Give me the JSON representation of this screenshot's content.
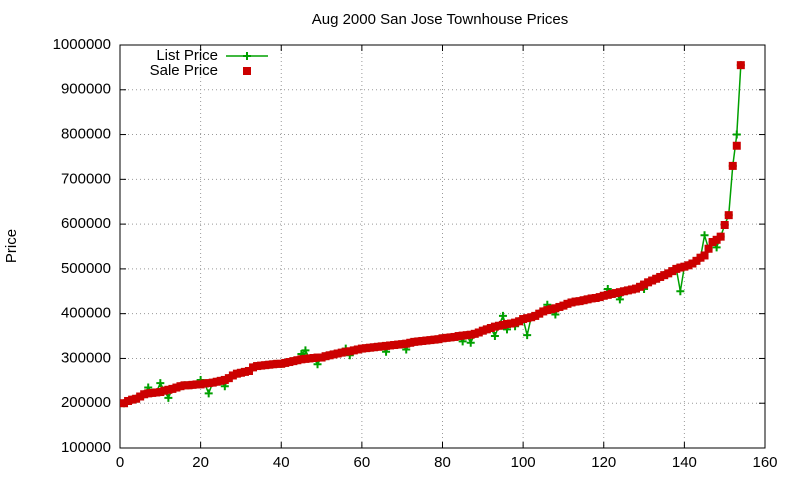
{
  "chart_data": {
    "type": "line",
    "title": "Aug 2000 San Jose Townhouse Prices",
    "y_label": "Price",
    "x": [
      1,
      2,
      3,
      4,
      5,
      6,
      7,
      8,
      9,
      10,
      11,
      12,
      13,
      14,
      15,
      16,
      17,
      18,
      19,
      20,
      21,
      22,
      23,
      24,
      25,
      26,
      27,
      28,
      29,
      30,
      31,
      32,
      33,
      34,
      35,
      36,
      37,
      38,
      39,
      40,
      41,
      42,
      43,
      44,
      45,
      46,
      47,
      48,
      49,
      50,
      51,
      52,
      53,
      54,
      55,
      56,
      57,
      58,
      59,
      60,
      61,
      62,
      63,
      64,
      65,
      66,
      67,
      68,
      69,
      70,
      71,
      72,
      73,
      74,
      75,
      76,
      77,
      78,
      79,
      80,
      81,
      82,
      83,
      84,
      85,
      86,
      87,
      88,
      89,
      90,
      91,
      92,
      93,
      94,
      95,
      96,
      97,
      98,
      99,
      100,
      101,
      102,
      103,
      104,
      105,
      106,
      107,
      108,
      109,
      110,
      111,
      112,
      113,
      114,
      115,
      116,
      117,
      118,
      119,
      120,
      121,
      122,
      123,
      124,
      125,
      126,
      127,
      128,
      129,
      130,
      131,
      132,
      133,
      134,
      135,
      136,
      137,
      138,
      139,
      140,
      141,
      142,
      143,
      144,
      145,
      146,
      147,
      148,
      149,
      150,
      151,
      152,
      153,
      154
    ],
    "series": [
      {
        "name": "List Price",
        "color": "#00a000",
        "marker": "plus",
        "values": [
          200000,
          205000,
          208000,
          210000,
          215000,
          220000,
          235000,
          223000,
          224000,
          245000,
          228000,
          212000,
          232000,
          235000,
          238000,
          240000,
          240000,
          241000,
          242000,
          252000,
          244000,
          222000,
          246000,
          248000,
          250000,
          238000,
          256000,
          262000,
          266000,
          268000,
          270000,
          272000,
          280000,
          283000,
          284000,
          285000,
          286000,
          287000,
          288000,
          288000,
          290000,
          292000,
          294000,
          296000,
          310000,
          318000,
          300000,
          301000,
          287000,
          302000,
          305000,
          307000,
          309000,
          311000,
          313000,
          322000,
          307000,
          318000,
          320000,
          322000,
          323000,
          324000,
          325000,
          326000,
          327000,
          315000,
          329000,
          330000,
          331000,
          332000,
          320000,
          335000,
          337000,
          338000,
          339000,
          340000,
          341000,
          342000,
          343000,
          345000,
          346000,
          347000,
          348000,
          350000,
          338000,
          352000,
          335000,
          355000,
          358000,
          362000,
          365000,
          368000,
          350000,
          373000,
          395000,
          365000,
          378000,
          372000,
          383000,
          388000,
          352000,
          392000,
          395000,
          400000,
          405000,
          420000,
          410000,
          398000,
          415000,
          418000,
          422000,
          425000,
          427000,
          428000,
          430000,
          432000,
          434000,
          435000,
          437000,
          440000,
          455000,
          444000,
          446000,
          432000,
          450000,
          452000,
          454000,
          456000,
          460000,
          455000,
          470000,
          474000,
          478000,
          482000,
          486000,
          490000,
          495000,
          500000,
          450000,
          505000,
          508000,
          512000,
          518000,
          525000,
          575000,
          545000,
          560000,
          548000,
          572000,
          598000,
          620000,
          730000,
          800000,
          955000
        ]
      },
      {
        "name": "Sale Price",
        "color": "#cc0000",
        "marker": "square",
        "values": [
          200000,
          205000,
          208000,
          210000,
          215000,
          220000,
          222000,
          223000,
          224000,
          225000,
          228000,
          230000,
          232000,
          235000,
          238000,
          240000,
          240000,
          241000,
          242000,
          242000,
          244000,
          245000,
          246000,
          248000,
          250000,
          252000,
          256000,
          262000,
          266000,
          268000,
          270000,
          272000,
          280000,
          283000,
          284000,
          285000,
          286000,
          287000,
          288000,
          288000,
          290000,
          292000,
          294000,
          296000,
          298000,
          299000,
          300000,
          301000,
          302000,
          302000,
          305000,
          307000,
          309000,
          311000,
          313000,
          315000,
          316000,
          318000,
          320000,
          322000,
          323000,
          324000,
          325000,
          326000,
          327000,
          328000,
          329000,
          330000,
          331000,
          332000,
          333000,
          335000,
          337000,
          338000,
          339000,
          340000,
          341000,
          342000,
          343000,
          345000,
          346000,
          347000,
          348000,
          350000,
          351000,
          352000,
          353000,
          355000,
          358000,
          362000,
          365000,
          368000,
          371000,
          373000,
          375000,
          377000,
          378000,
          380000,
          383000,
          388000,
          390000,
          392000,
          395000,
          400000,
          405000,
          408000,
          410000,
          412000,
          415000,
          418000,
          422000,
          425000,
          427000,
          428000,
          430000,
          432000,
          434000,
          435000,
          437000,
          440000,
          442000,
          444000,
          446000,
          448000,
          450000,
          452000,
          454000,
          456000,
          460000,
          465000,
          470000,
          474000,
          478000,
          482000,
          486000,
          490000,
          495000,
          500000,
          503000,
          505000,
          508000,
          512000,
          518000,
          525000,
          530000,
          545000,
          560000,
          565000,
          572000,
          598000,
          620000,
          730000,
          775000,
          955000
        ]
      }
    ],
    "xlim": [
      0,
      160
    ],
    "xticks": [
      0,
      20,
      40,
      60,
      80,
      100,
      120,
      140,
      160
    ],
    "ylim": [
      100000,
      1000000
    ],
    "yticks": [
      100000,
      200000,
      300000,
      400000,
      500000,
      600000,
      700000,
      800000,
      900000,
      1000000
    ],
    "grid": true,
    "legend": "top-left"
  }
}
